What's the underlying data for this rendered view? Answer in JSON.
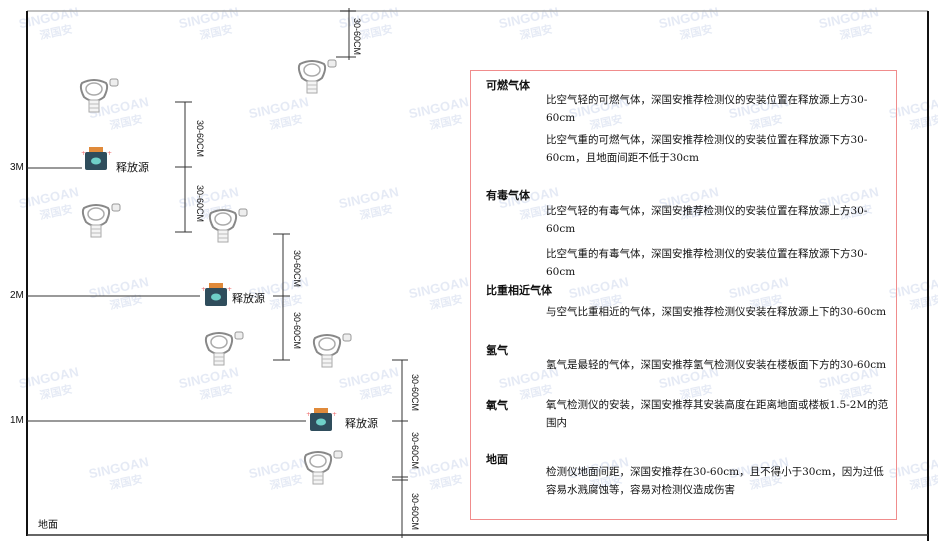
{
  "watermark": {
    "brand": "SINGOAN",
    "cn": "深国安"
  },
  "levels": [
    "3M",
    "2M",
    "1M"
  ],
  "floor_label": "地面",
  "dimension_label": "30-60CM",
  "source_label": "释放源",
  "colors": {
    "panel_border": "#f08c8c",
    "source_body": "#2f4d5c",
    "source_cap": "#e08a3a",
    "detector": "#888888"
  },
  "panel": {
    "sections": [
      {
        "heading": "可燃气体",
        "paras": [
          "比空气轻的可燃气体，深国安推荐检测仪的安装位置在释放源上方30-60cm",
          "比空气重的可燃气体，深国安推荐检测仪的安装位置在释放源下方30-60cm，且地面间距不低于30cm"
        ]
      },
      {
        "heading": "有毒气体",
        "paras": [
          "比空气轻的有毒气体，深国安推荐检测仪的安装位置在释放源上方30-60cm",
          "比空气重的有毒气体，深国安推荐检测仪的安装位置在释放源下方30-60cm"
        ]
      },
      {
        "heading": "比重相近气体",
        "paras": [
          "与空气比重相近的气体，深国安推荐检测仪安装在释放源上下的30-60cm"
        ]
      },
      {
        "heading": "氢气",
        "paras": [
          "氢气是最轻的气体，深国安推荐氢气检测仪安装在楼板面下方的30-60cm"
        ]
      },
      {
        "heading": "氧气",
        "paras": [
          "氧气检测仪的安装，深国安推荐其安装高度在距离地面或楼板1.5-2M的范围内"
        ]
      },
      {
        "heading": "地面",
        "paras": [
          "检测仪地面间距，深国安推荐在30-60cm，且不得小于30cm，因为过低容易水溅腐蚀等，容易对检测仪造成伤害"
        ]
      }
    ]
  }
}
